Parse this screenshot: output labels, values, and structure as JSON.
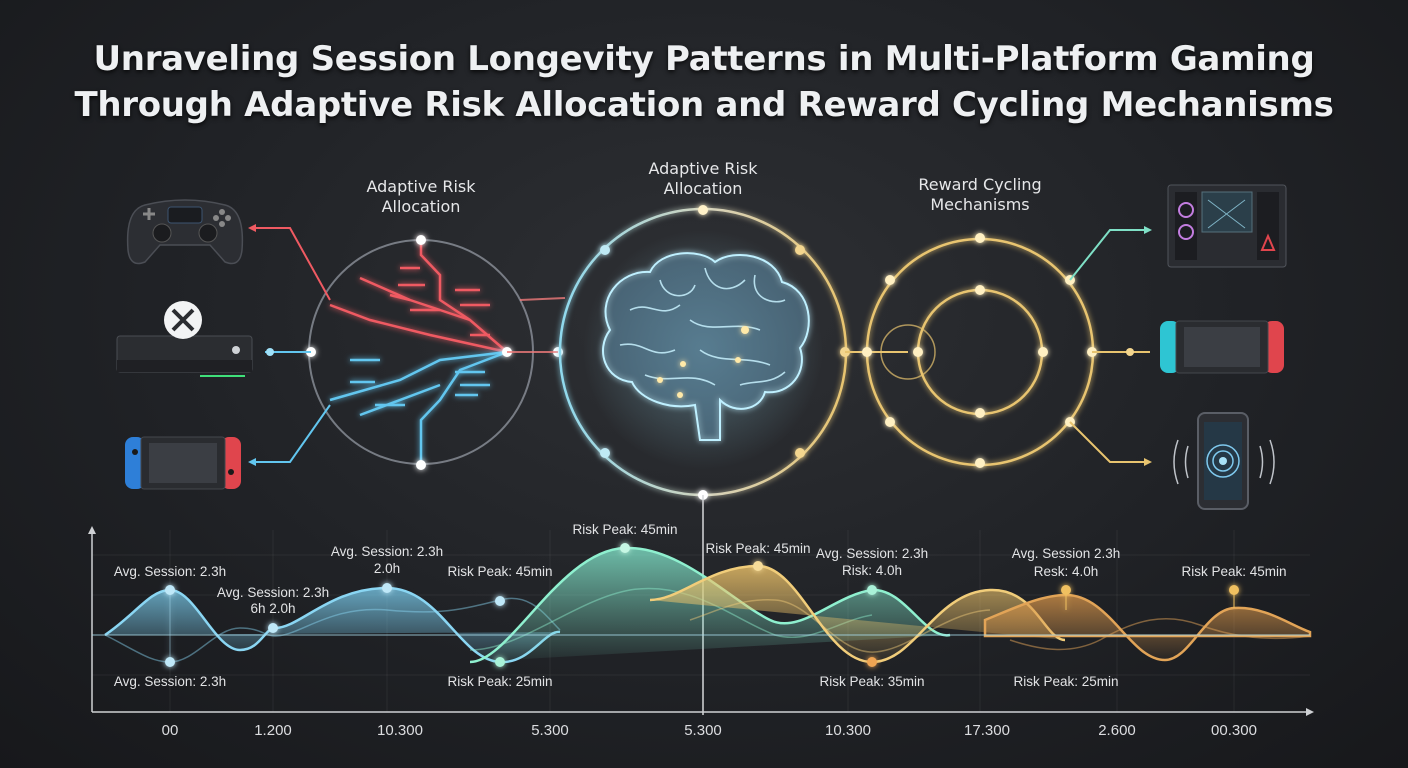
{
  "title": {
    "line1": "Unraveling Session Longevity Patterns in Multi-Platform Gaming",
    "line2": "Through Adaptive Risk Allocation and Reward Cycling Mechanisms"
  },
  "diagram": {
    "left_hub_label": [
      "Adaptive Risk",
      "Allocation"
    ],
    "center_hub_label": [
      "Adaptive Risk",
      "Allocation"
    ],
    "right_hub_label": [
      "Reward Cycling",
      "Mechanisms"
    ],
    "left_devices": [
      "gamepad-icon",
      "xbox-console-icon",
      "handheld-console-icon"
    ],
    "right_devices": [
      "gaming-pc-icon",
      "handheld-console-icon",
      "smartphone-icon"
    ],
    "colors": {
      "red": "#ef5a62",
      "blue": "#62c6ef",
      "gold": "#e8c46f",
      "teal": "#7fe0c6",
      "orange": "#e09a44"
    }
  },
  "chart": {
    "x_ticks": [
      "00",
      "1.200",
      "10.300",
      "5.300",
      "5.300",
      "10.300",
      "17.300",
      "2.600",
      "00.300"
    ],
    "annotations": {
      "a1": "Avg. Session: 2.3h",
      "a2_l1": "Avg. Session: 2.3h",
      "a2_l2": "6h 2.0h",
      "a3_l1": "Avg. Session: 2.3h",
      "a3_l2": "2.0h",
      "a4": "Risk Peak: 45min",
      "a5": "Risk Peak: 45min",
      "a6": "Risk Peak: 45min",
      "a7_l1": "Avg. Session: 2.3h",
      "a7_l2": "Risk: 4.0h",
      "a8_l1": "Avg. Session 2.3h",
      "a8_l2": "Resk: 4.0h",
      "a9": "Risk Peak: 45min",
      "b1": "Avg. Session: 2.3h",
      "b2": "Risk Peak: 25min",
      "b3": "Risk Peak: 35min",
      "b4": "Risk Peak: 25min"
    }
  }
}
